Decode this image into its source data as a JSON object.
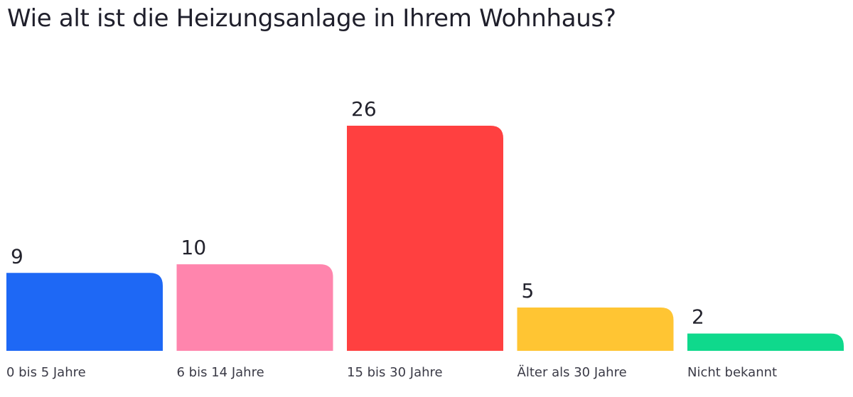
{
  "chart_data": {
    "type": "bar",
    "title": "Wie alt ist die Heizungsanlage in Ihrem Wohnhaus?",
    "categories": [
      "0 bis 5 Jahre",
      "6 bis 14 Jahre",
      "15 bis 30 Jahre",
      "Älter als 30 Jahre",
      "Nicht bekannt"
    ],
    "values": [
      9,
      10,
      26,
      5,
      2
    ],
    "colors": [
      "#1e68f5",
      "#ff85ad",
      "#ff4040",
      "#ffc533",
      "#0fd98c"
    ],
    "data_labels": [
      "9",
      "10",
      "26",
      "5",
      "2"
    ],
    "ylim": [
      0,
      26
    ],
    "grid": false,
    "legend": "none"
  }
}
